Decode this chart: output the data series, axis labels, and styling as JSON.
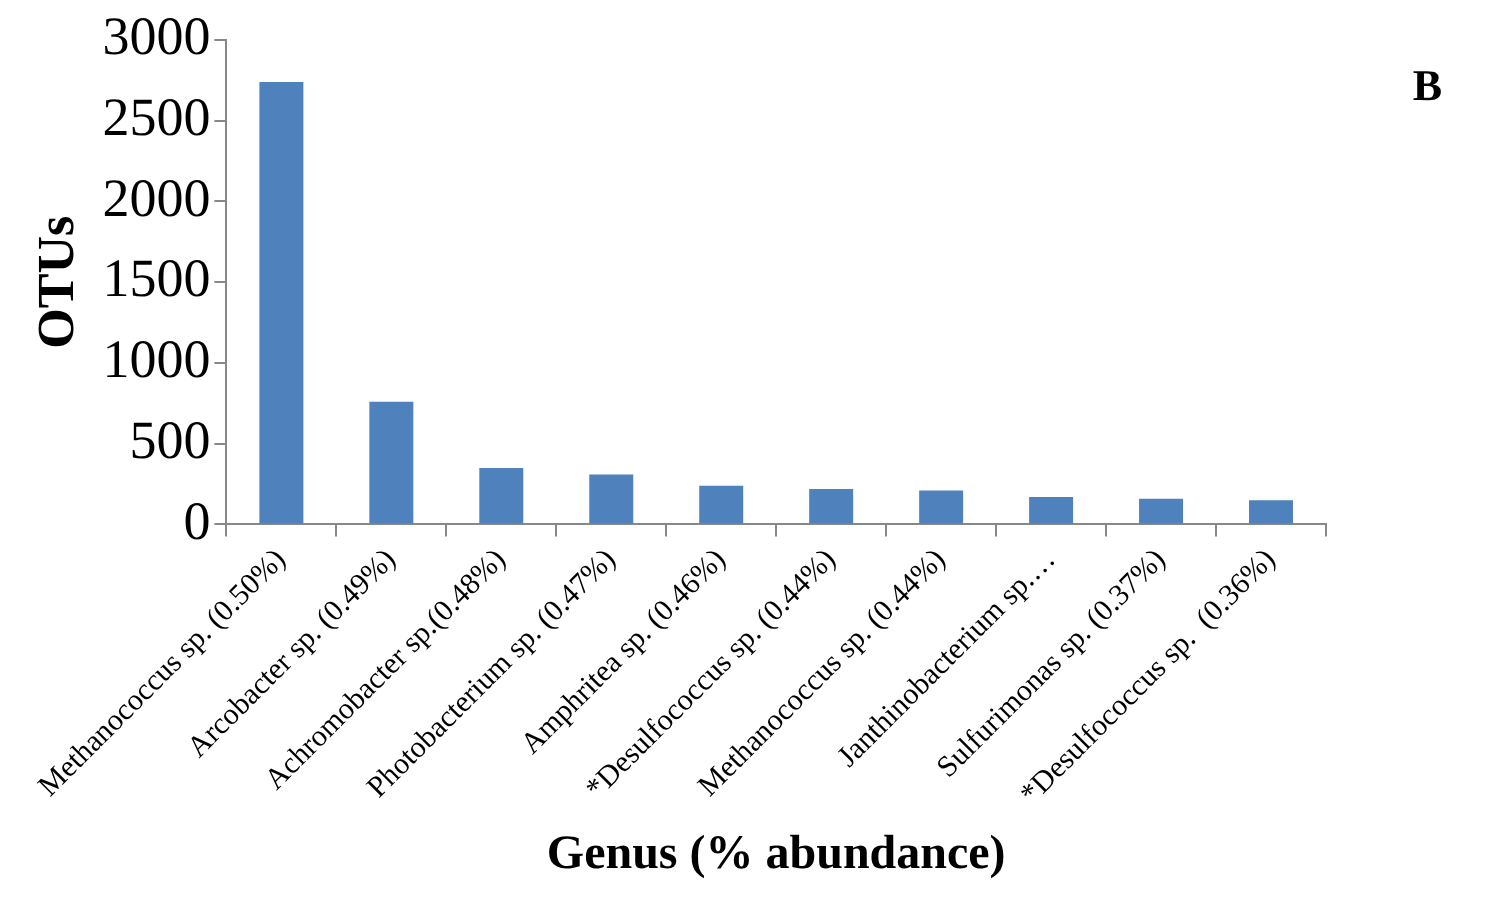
{
  "chart_data": {
    "type": "bar",
    "xlabel": "Genus (% abundance)",
    "ylabel": "OTUs",
    "annotations": [
      "B"
    ],
    "categories": [
      "Methanococcus sp. (0.50%)",
      "Arcobacter sp. (0.49%)",
      "Achromobacter sp.(0.48%)",
      "Photobacterium sp. (0.47%)",
      "Amphritea sp. (0.46%)",
      "*Desulfococcus sp. (0.44%)",
      "Methanococcus sp. (0.44%)",
      "Janthinobacterium sp.…",
      "Sulfurimonas sp. (0.37%)",
      "*Desulfococcus sp.  (0.36%)"
    ],
    "values": [
      2740,
      760,
      350,
      310,
      240,
      220,
      210,
      170,
      160,
      150
    ],
    "color": "#4f81bd",
    "ylim": [
      0,
      3000
    ],
    "yticks": [
      0,
      500,
      1000,
      1500,
      2000,
      2500,
      3000
    ],
    "grid": false,
    "legend": false
  }
}
